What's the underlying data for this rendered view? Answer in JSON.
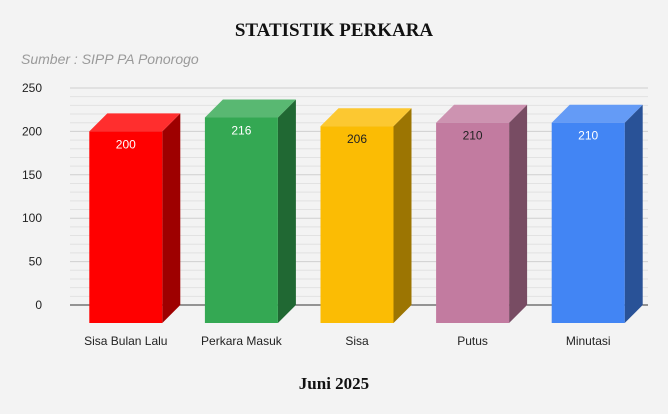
{
  "chart_data": {
    "type": "bar",
    "title": "STATISTIK PERKARA",
    "subtitle": "Sumber : SIPP PA Ponorogo",
    "xlabel": "Juni 2025",
    "ylabel": "",
    "ylim": [
      0,
      250
    ],
    "yticks": [
      0,
      50,
      100,
      150,
      200,
      250
    ],
    "grid": true,
    "three_d": true,
    "categories": [
      "Sisa Bulan Lalu",
      "Perkara Masuk",
      "Sisa",
      "Putus",
      "Minutasi"
    ],
    "values": [
      200,
      216,
      206,
      210,
      210
    ],
    "data_labels": [
      "200",
      "216",
      "206",
      "210",
      "210"
    ],
    "colors": [
      "#ff0000",
      "#34a853",
      "#fbbc04",
      "#c27ba0",
      "#4285f4"
    ]
  }
}
